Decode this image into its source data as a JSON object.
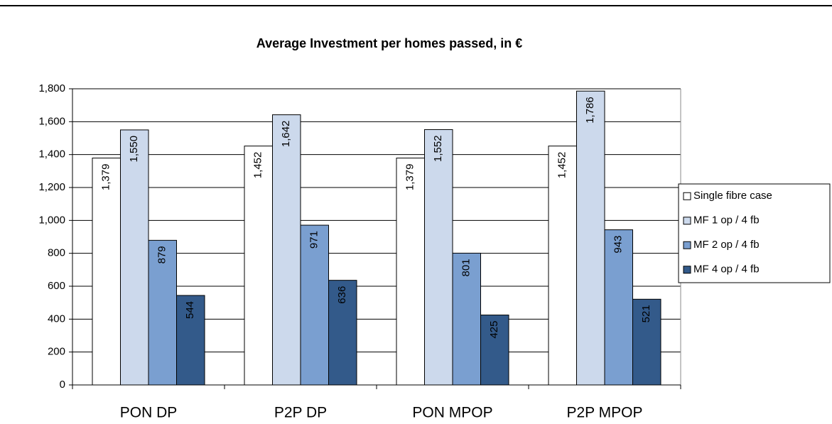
{
  "chart_data": {
    "type": "bar",
    "title": "Average Investment per homes passed, in €",
    "categories": [
      "PON DP",
      "P2P DP",
      "PON MPOP",
      "P2P MPOP"
    ],
    "series": [
      {
        "name": "Single fibre case",
        "color": "#ffffff",
        "values": [
          1379,
          1452,
          1379,
          1452
        ],
        "value_labels": [
          "1,379",
          "1,452",
          "1,379",
          "1,452"
        ]
      },
      {
        "name": "MF 1 op / 4 fb",
        "color": "#ccd9ec",
        "values": [
          1550,
          1642,
          1552,
          1786
        ],
        "value_labels": [
          "1,550",
          "1,642",
          "1,552",
          "1,786"
        ]
      },
      {
        "name": "MF 2 op / 4 fb",
        "color": "#7a9fd0",
        "values": [
          879,
          971,
          801,
          943
        ]
      },
      {
        "name": "MF 4 op / 4 fb",
        "color": "#335a8a",
        "values": [
          544,
          636,
          425,
          521
        ]
      }
    ],
    "ylim": [
      0,
      1800
    ],
    "yticks": [
      0,
      200,
      400,
      600,
      800,
      {
        "value": 1000,
        "label": "1,000"
      },
      {
        "value": 1200,
        "label": "1,200"
      },
      {
        "value": 1400,
        "label": "1,400"
      },
      {
        "value": 1600,
        "label": "1,600"
      },
      {
        "value": 1800,
        "label": "1,800"
      }
    ],
    "grid": true,
    "legend": "right"
  }
}
